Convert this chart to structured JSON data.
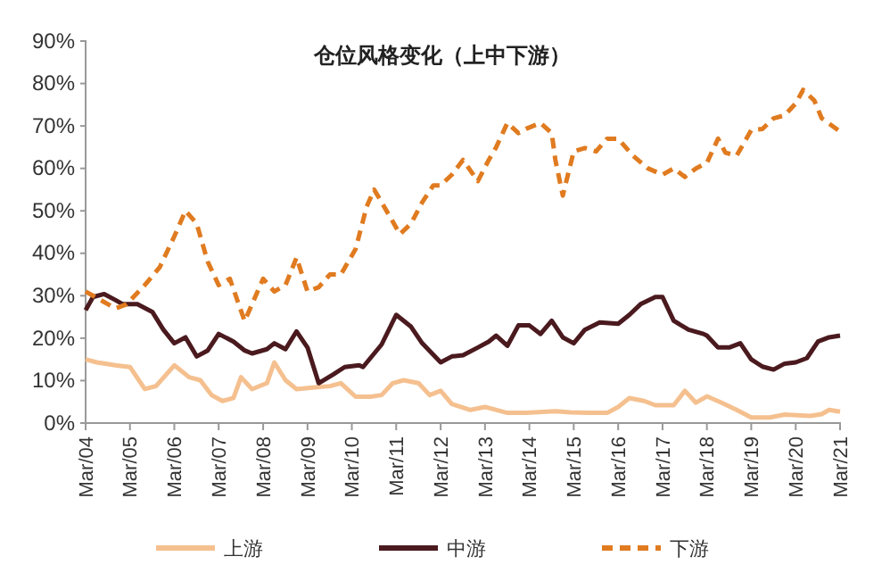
{
  "chart_data": {
    "type": "line",
    "title": "仓位风格变化（上中下游）",
    "xlim": [
      "2004-03",
      "2021-03"
    ],
    "xticks": [
      {
        "value": "2004-03",
        "label": "Mar/04"
      },
      {
        "value": "2005-03",
        "label": "Mar/05"
      },
      {
        "value": "2006-03",
        "label": "Mar/06"
      },
      {
        "value": "2007-03",
        "label": "Mar/07"
      },
      {
        "value": "2008-03",
        "label": "Mar/08"
      },
      {
        "value": "2009-03",
        "label": "Mar/09"
      },
      {
        "value": "2010-03",
        "label": "Mar/10"
      },
      {
        "value": "2011-03",
        "label": "Mar/11"
      },
      {
        "value": "2012-03",
        "label": "Mar/12"
      },
      {
        "value": "2013-03",
        "label": "Mar/13"
      },
      {
        "value": "2014-03",
        "label": "Mar/14"
      },
      {
        "value": "2015-03",
        "label": "Mar/15"
      },
      {
        "value": "2016-03",
        "label": "Mar/16"
      },
      {
        "value": "2017-03",
        "label": "Mar/17"
      },
      {
        "value": "2018-03",
        "label": "Mar/18"
      },
      {
        "value": "2019-03",
        "label": "Mar/19"
      },
      {
        "value": "2020-03",
        "label": "Mar/20"
      },
      {
        "value": "2021-03",
        "label": "Mar/21"
      }
    ],
    "ylim": [
      0,
      90
    ],
    "yticks": [
      {
        "value": 0,
        "label": "0%"
      },
      {
        "value": 10,
        "label": "10%"
      },
      {
        "value": 20,
        "label": "20%"
      },
      {
        "value": 30,
        "label": "30%"
      },
      {
        "value": 40,
        "label": "40%"
      },
      {
        "value": 50,
        "label": "50%"
      },
      {
        "value": 60,
        "label": "60%"
      },
      {
        "value": 70,
        "label": "70%"
      },
      {
        "value": 80,
        "label": "80%"
      },
      {
        "value": 90,
        "label": "90%"
      }
    ],
    "legend": "bottom",
    "series": [
      {
        "name": "上游",
        "color": "#f5c08f",
        "line_style": "solid",
        "x": [
          "2004-03",
          "2004-06",
          "2004-11",
          "2005-03",
          "2005-07",
          "2005-10",
          "2006-03",
          "2006-07",
          "2006-10",
          "2007-01",
          "2007-04",
          "2007-07",
          "2007-09",
          "2007-12",
          "2008-04",
          "2008-06",
          "2008-09",
          "2008-12",
          "2009-05",
          "2009-09",
          "2009-12",
          "2010-04",
          "2010-08",
          "2010-11",
          "2011-02",
          "2011-05",
          "2011-09",
          "2011-12",
          "2012-03",
          "2012-06",
          "2012-11",
          "2013-03",
          "2013-09",
          "2014-02",
          "2014-10",
          "2015-02",
          "2015-07",
          "2015-12",
          "2016-03",
          "2016-06",
          "2016-10",
          "2017-01",
          "2017-06",
          "2017-09",
          "2017-12",
          "2018-03",
          "2018-07",
          "2018-11",
          "2019-03",
          "2019-08",
          "2019-12",
          "2020-07",
          "2020-10",
          "2020-12",
          "2021-03"
        ],
        "values": [
          15,
          14.3,
          13.6,
          13.2,
          8,
          8.7,
          13.6,
          10.8,
          10.1,
          6.6,
          5.2,
          5.9,
          10.8,
          8,
          9.4,
          14.3,
          10.1,
          8,
          8.4,
          8.7,
          9.4,
          6.2,
          6.2,
          6.6,
          9.4,
          10.1,
          9.4,
          6.6,
          7.6,
          4.5,
          3.1,
          3.8,
          2.4,
          2.4,
          2.8,
          2.5,
          2.4,
          2.4,
          3.8,
          5.9,
          5.2,
          4.2,
          4.2,
          7.6,
          4.8,
          6.3,
          4.8,
          3.1,
          1.3,
          1.3,
          2,
          1.7,
          2.1,
          3.1,
          2.7
        ]
      },
      {
        "name": "中游",
        "color": "#4a1a1f",
        "line_style": "solid",
        "x": [
          "2004-03",
          "2004-05",
          "2004-08",
          "2004-11",
          "2005-01",
          "2005-05",
          "2005-09",
          "2005-12",
          "2006-03",
          "2006-06",
          "2006-09",
          "2006-12",
          "2007-03",
          "2007-07",
          "2007-10",
          "2007-12",
          "2008-04",
          "2008-06",
          "2008-09",
          "2008-12",
          "2009-03",
          "2009-06",
          "2009-10",
          "2010-01",
          "2010-05",
          "2010-06",
          "2010-11",
          "2011-03",
          "2011-07",
          "2011-10",
          "2012-03",
          "2012-06",
          "2012-09",
          "2013-01",
          "2013-04",
          "2013-06",
          "2013-09",
          "2013-12",
          "2014-03",
          "2014-06",
          "2014-09",
          "2014-12",
          "2015-03",
          "2015-06",
          "2015-10",
          "2016-03",
          "2016-06",
          "2016-09",
          "2017-01",
          "2017-03",
          "2017-06",
          "2017-10",
          "2018-02",
          "2018-03",
          "2018-06",
          "2018-09",
          "2018-12",
          "2019-03",
          "2019-06",
          "2019-09",
          "2019-12",
          "2020-03",
          "2020-06",
          "2020-09",
          "2020-12",
          "2021-03"
        ],
        "values": [
          26.6,
          29.7,
          30.4,
          29,
          28,
          28,
          26.2,
          22,
          18.8,
          20.2,
          15.7,
          17.1,
          21,
          19.2,
          17.1,
          16.4,
          17.4,
          18.8,
          17.4,
          21.6,
          17.8,
          9.4,
          11.5,
          13.2,
          13.6,
          13.2,
          18.5,
          25.5,
          22.7,
          18.8,
          14.3,
          15.7,
          16,
          17.8,
          19.2,
          20.6,
          18.2,
          23,
          23,
          21,
          24.1,
          20.2,
          18.8,
          22,
          23.7,
          23.4,
          25.5,
          28,
          29.7,
          29.7,
          24.1,
          22,
          21,
          20.6,
          17.8,
          17.8,
          18.8,
          15,
          13.3,
          12.6,
          14,
          14.3,
          15.3,
          19.2,
          20.2,
          20.6
        ]
      },
      {
        "name": "下游",
        "color": "#e07b20",
        "line_style": "dashed",
        "x": [
          "2004-03",
          "2004-07",
          "2004-11",
          "2005-02",
          "2005-07",
          "2005-11",
          "2006-03",
          "2006-06",
          "2006-09",
          "2006-12",
          "2007-03",
          "2007-06",
          "2007-10",
          "2008-03",
          "2008-06",
          "2008-09",
          "2008-12",
          "2009-03",
          "2009-06",
          "2009-09",
          "2009-12",
          "2010-04",
          "2010-07",
          "2010-09",
          "2011-01",
          "2011-04",
          "2011-07",
          "2011-10",
          "2012-01",
          "2012-03",
          "2012-06",
          "2012-09",
          "2013-01",
          "2013-04",
          "2013-06",
          "2013-09",
          "2013-12",
          "2014-02",
          "2014-06",
          "2014-09",
          "2014-10",
          "2014-12",
          "2015-03",
          "2015-06",
          "2015-09",
          "2015-12",
          "2016-03",
          "2016-07",
          "2016-11",
          "2017-03",
          "2017-06",
          "2017-09",
          "2017-12",
          "2018-03",
          "2018-06",
          "2018-08",
          "2018-11",
          "2019-03",
          "2019-06",
          "2019-09",
          "2019-12",
          "2020-03",
          "2020-05",
          "2020-08",
          "2020-10",
          "2021-03"
        ],
        "values": [
          31,
          29,
          27,
          28,
          32.5,
          36.7,
          44,
          50,
          47,
          38,
          32.5,
          34,
          24,
          34,
          31,
          32.5,
          39,
          31,
          32,
          35,
          35,
          41,
          51,
          55,
          49,
          44.5,
          47,
          52,
          56,
          56,
          58.5,
          62,
          57,
          62,
          65,
          70.7,
          68.3,
          69.3,
          70.7,
          68.3,
          62,
          53.6,
          64,
          64.8,
          64,
          67,
          67,
          63,
          60,
          58.5,
          60,
          58,
          60,
          61.3,
          67,
          63.7,
          63,
          69,
          69.3,
          71.8,
          72.5,
          75.3,
          78.5,
          76,
          71.8,
          68.7
        ]
      }
    ]
  }
}
